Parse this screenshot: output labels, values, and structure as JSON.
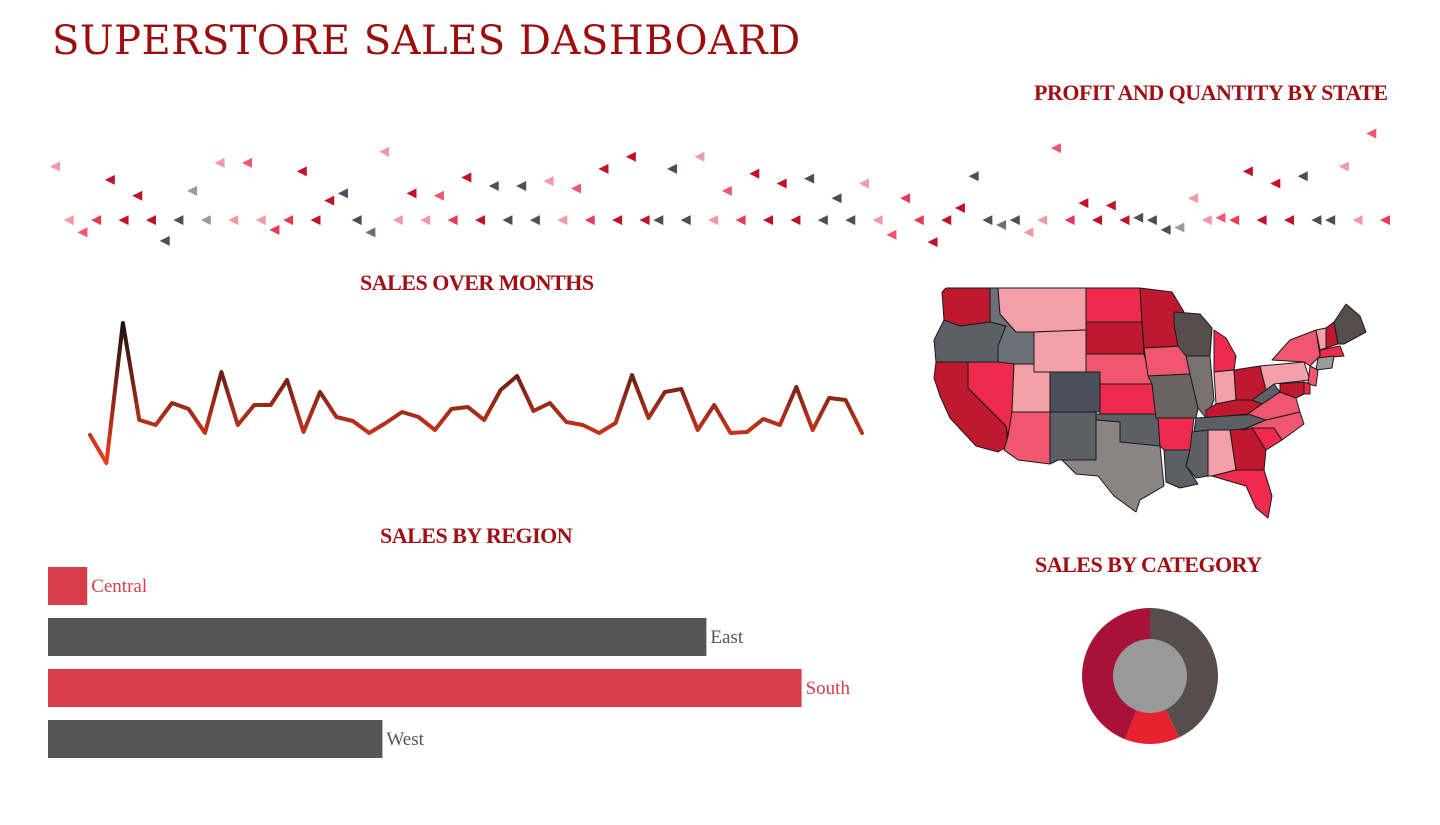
{
  "dashboard": {
    "title": "SUPERSTORE SALES DASHBOARD"
  },
  "sections": {
    "profit_state": "PROFIT AND QUANTITY BY STATE",
    "sales_months": "SALES OVER MONTHS",
    "sales_region": "SALES BY REGION",
    "sales_category": "SALES BY CATEGORY"
  },
  "colors": {
    "title": "#9c0e0e",
    "section_title": "#a00f14",
    "accent_red": "#d93c4a",
    "dark_gray": "#565656",
    "line_low": "#ef3a1c",
    "line_high": "#111111"
  },
  "chart_data": [
    {
      "type": "scatter",
      "name_in_ui": "profit_and_quantity_by_state",
      "marker": "left-pointing triangle",
      "points": [
        {
          "x": 1,
          "y": 0.34,
          "c": "#f19aa6"
        },
        {
          "x": 2,
          "y": 0.78,
          "c": "#f19aa6"
        },
        {
          "x": 3,
          "y": 0.88,
          "c": "#f0566f"
        },
        {
          "x": 4,
          "y": 0.78,
          "c": "#e63b58"
        },
        {
          "x": 5,
          "y": 0.45,
          "c": "#c0122b"
        },
        {
          "x": 6,
          "y": 0.78,
          "c": "#c0122b"
        },
        {
          "x": 7,
          "y": 0.58,
          "c": "#c0122b"
        },
        {
          "x": 8,
          "y": 0.78,
          "c": "#c0122b"
        },
        {
          "x": 9,
          "y": 0.95,
          "c": "#4a4f5a"
        },
        {
          "x": 10,
          "y": 0.78,
          "c": "#4a4f5a"
        },
        {
          "x": 11,
          "y": 0.54,
          "c": "#9a9a9a"
        },
        {
          "x": 12,
          "y": 0.78,
          "c": "#9a9a9a"
        },
        {
          "x": 13,
          "y": 0.31,
          "c": "#f19aa6"
        },
        {
          "x": 14,
          "y": 0.78,
          "c": "#f19aa6"
        },
        {
          "x": 15,
          "y": 0.31,
          "c": "#f0566f"
        },
        {
          "x": 16,
          "y": 0.78,
          "c": "#f19aa6"
        },
        {
          "x": 17,
          "y": 0.86,
          "c": "#e63b58"
        },
        {
          "x": 18,
          "y": 0.78,
          "c": "#e63b58"
        },
        {
          "x": 19,
          "y": 0.38,
          "c": "#c0122b"
        },
        {
          "x": 20,
          "y": 0.78,
          "c": "#c0122b"
        },
        {
          "x": 21,
          "y": 0.62,
          "c": "#c0122b"
        },
        {
          "x": 22,
          "y": 0.56,
          "c": "#4a4f5a"
        },
        {
          "x": 23,
          "y": 0.78,
          "c": "#4a4f5a"
        },
        {
          "x": 24,
          "y": 0.88,
          "c": "#6b6f78"
        },
        {
          "x": 25,
          "y": 0.22,
          "c": "#f19aa6"
        },
        {
          "x": 26,
          "y": 0.78,
          "c": "#f19aa6"
        },
        {
          "x": 27,
          "y": 0.56,
          "c": "#c0122b"
        },
        {
          "x": 28,
          "y": 0.78,
          "c": "#f19aa6"
        },
        {
          "x": 29,
          "y": 0.58,
          "c": "#f0566f"
        },
        {
          "x": 30,
          "y": 0.78,
          "c": "#e63b58"
        },
        {
          "x": 31,
          "y": 0.43,
          "c": "#c0122b"
        },
        {
          "x": 32,
          "y": 0.78,
          "c": "#c0122b"
        },
        {
          "x": 33,
          "y": 0.5,
          "c": "#4a4f5a"
        },
        {
          "x": 34,
          "y": 0.78,
          "c": "#4a4f5a"
        },
        {
          "x": 35,
          "y": 0.5,
          "c": "#4a4f5a"
        },
        {
          "x": 36,
          "y": 0.78,
          "c": "#4a4f5a"
        },
        {
          "x": 37,
          "y": 0.46,
          "c": "#f19aa6"
        },
        {
          "x": 38,
          "y": 0.78,
          "c": "#f19aa6"
        },
        {
          "x": 39,
          "y": 0.52,
          "c": "#f0566f"
        },
        {
          "x": 40,
          "y": 0.78,
          "c": "#e63b58"
        },
        {
          "x": 41,
          "y": 0.36,
          "c": "#c0122b"
        },
        {
          "x": 42,
          "y": 0.78,
          "c": "#c0122b"
        },
        {
          "x": 43,
          "y": 0.26,
          "c": "#c0122b"
        },
        {
          "x": 44,
          "y": 0.78,
          "c": "#c0122b"
        },
        {
          "x": 45,
          "y": 0.78,
          "c": "#4a4f5a"
        },
        {
          "x": 46,
          "y": 0.36,
          "c": "#4a4f5a"
        },
        {
          "x": 47,
          "y": 0.78,
          "c": "#4a4f5a"
        },
        {
          "x": 48,
          "y": 0.26,
          "c": "#f19aa6"
        },
        {
          "x": 49,
          "y": 0.78,
          "c": "#f19aa6"
        },
        {
          "x": 50,
          "y": 0.54,
          "c": "#f0566f"
        },
        {
          "x": 51,
          "y": 0.78,
          "c": "#e63b58"
        },
        {
          "x": 52,
          "y": 0.4,
          "c": "#c0122b"
        },
        {
          "x": 53,
          "y": 0.78,
          "c": "#c0122b"
        },
        {
          "x": 54,
          "y": 0.48,
          "c": "#c0122b"
        },
        {
          "x": 55,
          "y": 0.78,
          "c": "#c0122b"
        },
        {
          "x": 56,
          "y": 0.44,
          "c": "#4a4f5a"
        },
        {
          "x": 57,
          "y": 0.78,
          "c": "#4a4f5a"
        },
        {
          "x": 58,
          "y": 0.6,
          "c": "#4a4f5a"
        },
        {
          "x": 59,
          "y": 0.78,
          "c": "#4a4f5a"
        },
        {
          "x": 60,
          "y": 0.48,
          "c": "#f19aa6"
        },
        {
          "x": 61,
          "y": 0.78,
          "c": "#f19aa6"
        },
        {
          "x": 62,
          "y": 0.9,
          "c": "#f0566f"
        },
        {
          "x": 63,
          "y": 0.6,
          "c": "#e63b58"
        },
        {
          "x": 64,
          "y": 0.78,
          "c": "#e63b58"
        },
        {
          "x": 65,
          "y": 0.96,
          "c": "#c0122b"
        },
        {
          "x": 66,
          "y": 0.78,
          "c": "#c0122b"
        },
        {
          "x": 67,
          "y": 0.68,
          "c": "#c0122b"
        },
        {
          "x": 68,
          "y": 0.42,
          "c": "#4a4f5a"
        },
        {
          "x": 69,
          "y": 0.78,
          "c": "#4a4f5a"
        },
        {
          "x": 70,
          "y": 0.82,
          "c": "#6b6f78"
        },
        {
          "x": 71,
          "y": 0.78,
          "c": "#4a4f5a"
        },
        {
          "x": 72,
          "y": 0.88,
          "c": "#f19aa6"
        },
        {
          "x": 73,
          "y": 0.78,
          "c": "#f19aa6"
        },
        {
          "x": 74,
          "y": 0.19,
          "c": "#f0566f"
        },
        {
          "x": 75,
          "y": 0.78,
          "c": "#e63b58"
        },
        {
          "x": 76,
          "y": 0.64,
          "c": "#c0122b"
        },
        {
          "x": 77,
          "y": 0.78,
          "c": "#c0122b"
        },
        {
          "x": 78,
          "y": 0.66,
          "c": "#c0122b"
        },
        {
          "x": 79,
          "y": 0.78,
          "c": "#c0122b"
        },
        {
          "x": 80,
          "y": 0.76,
          "c": "#4a4f5a"
        },
        {
          "x": 81,
          "y": 0.78,
          "c": "#4a4f5a"
        },
        {
          "x": 82,
          "y": 0.86,
          "c": "#4a4f5a"
        },
        {
          "x": 83,
          "y": 0.84,
          "c": "#9a9a9a"
        },
        {
          "x": 84,
          "y": 0.6,
          "c": "#f19aa6"
        },
        {
          "x": 85,
          "y": 0.78,
          "c": "#f19aa6"
        },
        {
          "x": 86,
          "y": 0.76,
          "c": "#f0566f"
        },
        {
          "x": 87,
          "y": 0.78,
          "c": "#e63b58"
        },
        {
          "x": 88,
          "y": 0.38,
          "c": "#c0122b"
        },
        {
          "x": 89,
          "y": 0.78,
          "c": "#c0122b"
        },
        {
          "x": 90,
          "y": 0.48,
          "c": "#c0122b"
        },
        {
          "x": 91,
          "y": 0.78,
          "c": "#c0122b"
        },
        {
          "x": 92,
          "y": 0.42,
          "c": "#4a4f5a"
        },
        {
          "x": 93,
          "y": 0.78,
          "c": "#4a4f5a"
        },
        {
          "x": 94,
          "y": 0.78,
          "c": "#4a4f5a"
        },
        {
          "x": 95,
          "y": 0.34,
          "c": "#f19aa6"
        },
        {
          "x": 96,
          "y": 0.78,
          "c": "#f19aa6"
        },
        {
          "x": 97,
          "y": 0.07,
          "c": "#f0566f"
        },
        {
          "x": 98,
          "y": 0.78,
          "c": "#e63b58"
        }
      ]
    },
    {
      "type": "line",
      "name_in_ui": "sales_over_months",
      "values": [
        4,
        1.2,
        15.2,
        5.5,
        5,
        7.2,
        6.6,
        4.2,
        10.3,
        5,
        7,
        7,
        9.5,
        4.3,
        8.3,
        5.8,
        5.4,
        4.2,
        5.2,
        6.3,
        5.8,
        4.5,
        6.6,
        6.8,
        5.5,
        8.5,
        9.9,
        6.4,
        7.2,
        5.3,
        5,
        4.2,
        5.2,
        10,
        5.7,
        8.3,
        8.6,
        4.5,
        7,
        4.2,
        4.3,
        5.6,
        5,
        8.8,
        4.5,
        7.7,
        7.5,
        4.2
      ],
      "ylim": [
        0,
        16
      ]
    },
    {
      "type": "bar",
      "name_in_ui": "sales_by_region",
      "categories": [
        "Central",
        "East",
        "South",
        "West"
      ],
      "values": [
        49,
        823,
        942,
        418
      ],
      "colors": [
        "#d93c4a",
        "#565656",
        "#d93c4a",
        "#565656"
      ],
      "xlim": [
        0,
        1000
      ]
    },
    {
      "type": "pie",
      "name_in_ui": "sales_by_category",
      "donut": true,
      "slices": [
        {
          "value": 43,
          "color": "#574d4c"
        },
        {
          "value": 13,
          "color": "#e8212e"
        },
        {
          "value": 44,
          "color": "#a8113a"
        }
      ],
      "hole_color": "#999999"
    }
  ],
  "map": {
    "states": [
      {
        "name": "Washington",
        "color": "#c0182f"
      },
      {
        "name": "Oregon",
        "color": "#5c5f66"
      },
      {
        "name": "California",
        "color": "#c0182f"
      },
      {
        "name": "Nevada",
        "color": "#f0294f"
      },
      {
        "name": "Idaho",
        "color": "#6a6f78"
      },
      {
        "name": "Montana",
        "color": "#f4a0aa"
      },
      {
        "name": "Wyoming",
        "color": "#f4a0aa"
      },
      {
        "name": "Utah",
        "color": "#f4a0aa"
      },
      {
        "name": "Arizona",
        "color": "#f0566f"
      },
      {
        "name": "Colorado",
        "color": "#4a4f5a"
      },
      {
        "name": "New Mexico",
        "color": "#5c5f66"
      },
      {
        "name": "North Dakota",
        "color": "#f0294f"
      },
      {
        "name": "South Dakota",
        "color": "#c0182f"
      },
      {
        "name": "Nebraska",
        "color": "#f0566f"
      },
      {
        "name": "Kansas",
        "color": "#f0294f"
      },
      {
        "name": "Oklahoma",
        "color": "#5c5f66"
      },
      {
        "name": "Texas",
        "color": "#8a8583"
      },
      {
        "name": "Minnesota",
        "color": "#c0182f"
      },
      {
        "name": "Iowa",
        "color": "#f0566f"
      },
      {
        "name": "Missouri",
        "color": "#6a6361"
      },
      {
        "name": "Arkansas",
        "color": "#f0294f"
      },
      {
        "name": "Louisiana",
        "color": "#5c5f66"
      },
      {
        "name": "Wisconsin",
        "color": "#574d4c"
      },
      {
        "name": "Illinois",
        "color": "#7a7270"
      },
      {
        "name": "Michigan",
        "color": "#f0294f"
      },
      {
        "name": "Indiana",
        "color": "#f4a0aa"
      },
      {
        "name": "Ohio",
        "color": "#c0182f"
      },
      {
        "name": "Kentucky",
        "color": "#c0182f"
      },
      {
        "name": "Tennessee",
        "color": "#5c5f66"
      },
      {
        "name": "Mississippi",
        "color": "#5c5f66"
      },
      {
        "name": "Alabama",
        "color": "#f4a0aa"
      },
      {
        "name": "Georgia",
        "color": "#c0182f"
      },
      {
        "name": "Florida",
        "color": "#f0294f"
      },
      {
        "name": "South Carolina",
        "color": "#f0294f"
      },
      {
        "name": "North Carolina",
        "color": "#f0566f"
      },
      {
        "name": "Virginia",
        "color": "#f0566f"
      },
      {
        "name": "West Virginia",
        "color": "#5c5f66"
      },
      {
        "name": "Pennsylvania",
        "color": "#f4a0aa"
      },
      {
        "name": "New York",
        "color": "#f0566f"
      },
      {
        "name": "Vermont",
        "color": "#f4a0aa"
      },
      {
        "name": "New Hampshire",
        "color": "#c0182f"
      },
      {
        "name": "Maine",
        "color": "#574d4c"
      },
      {
        "name": "Massachusetts",
        "color": "#f0294f"
      },
      {
        "name": "Connecticut",
        "color": "#9a9a9a"
      },
      {
        "name": "New Jersey",
        "color": "#f0566f"
      },
      {
        "name": "Maryland",
        "color": "#c0182f"
      },
      {
        "name": "Delaware",
        "color": "#f0294f"
      }
    ]
  }
}
